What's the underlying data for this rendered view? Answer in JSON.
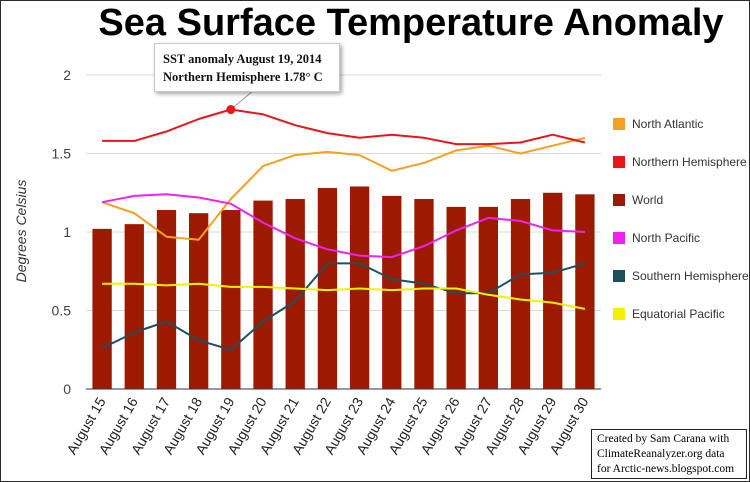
{
  "chart_data": {
    "type": "bar",
    "title": "Sea Surface Temperature Anomaly",
    "xlabel": "",
    "ylabel": "Degrees Celsius",
    "ylim": [
      0,
      2
    ],
    "yticks": [
      0,
      0.5,
      1,
      1.5,
      2
    ],
    "ytick_labels": [
      "0",
      "0.5",
      "1",
      "1.5",
      "2"
    ],
    "grid": true,
    "legend_position": "right",
    "categories": [
      "August 15",
      "August 16",
      "August 17",
      "August 18",
      "August 19",
      "August 20",
      "August 21",
      "August 22",
      "August 23",
      "August 24",
      "August 25",
      "August 26",
      "August 27",
      "August 28",
      "August 29",
      "August 30"
    ],
    "series": [
      {
        "name": "North Atlantic",
        "type": "line",
        "color": "#f5a020",
        "values": [
          1.19,
          1.12,
          0.97,
          0.95,
          1.21,
          1.42,
          1.49,
          1.51,
          1.49,
          1.39,
          1.44,
          1.52,
          1.55,
          1.5,
          1.55,
          1.6
        ]
      },
      {
        "name": "Northern Hemisphere",
        "type": "line",
        "color": "#e8151b",
        "values": [
          1.58,
          1.58,
          1.64,
          1.72,
          1.78,
          1.75,
          1.68,
          1.63,
          1.6,
          1.62,
          1.6,
          1.56,
          1.56,
          1.57,
          1.62,
          1.57
        ]
      },
      {
        "name": "World",
        "type": "bar",
        "color": "#9c1b00",
        "values": [
          1.02,
          1.05,
          1.14,
          1.12,
          1.14,
          1.2,
          1.21,
          1.28,
          1.29,
          1.23,
          1.21,
          1.16,
          1.16,
          1.21,
          1.25,
          1.24
        ]
      },
      {
        "name": "North Pacific",
        "type": "line",
        "color": "#ee22ee",
        "values": [
          1.19,
          1.23,
          1.24,
          1.22,
          1.18,
          1.06,
          0.96,
          0.89,
          0.85,
          0.84,
          0.91,
          1.01,
          1.09,
          1.07,
          1.01,
          1.0
        ]
      },
      {
        "name": "Southern Hemisphere",
        "type": "line",
        "color": "#1e4f5e",
        "values": [
          0.26,
          0.36,
          0.43,
          0.31,
          0.25,
          0.43,
          0.56,
          0.8,
          0.8,
          0.7,
          0.67,
          0.61,
          0.61,
          0.73,
          0.74,
          0.8
        ]
      },
      {
        "name": "Equatorial Pacific",
        "type": "line",
        "color": "#f2f200",
        "values": [
          0.67,
          0.67,
          0.66,
          0.67,
          0.65,
          0.65,
          0.64,
          0.63,
          0.64,
          0.63,
          0.64,
          0.64,
          0.6,
          0.57,
          0.55,
          0.51
        ]
      }
    ],
    "annotation": {
      "lines": [
        "SST anomaly August 19, 2014",
        "Northern Hemisphere 1.78° C"
      ],
      "series": "Northern Hemisphere",
      "category": "August 19",
      "value": 1.78,
      "marker_color": "#e8151b"
    },
    "credit": [
      "Created by Sam Carana with",
      "ClimateReanalyzer.org data",
      "for Arctic-news.blogspot.com"
    ],
    "colors": {
      "gridline": "#d9d9d9",
      "axis": "#333333",
      "background": "#ffffff"
    }
  }
}
